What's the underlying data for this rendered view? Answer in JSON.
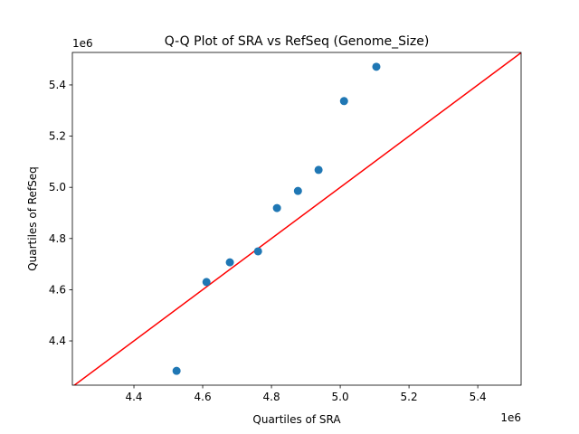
{
  "chart_data": {
    "type": "scatter",
    "title": "Q-Q Plot of SRA vs RefSeq (Genome_Size)",
    "xlabel": "Quartiles of SRA",
    "ylabel": "Quartiles of RefSeq",
    "x_offset_label": "1e6",
    "y_offset_label": "1e6",
    "xlim": [
      4.221,
      5.526
    ],
    "ylim": [
      4.227,
      5.527
    ],
    "xticks": [
      4.4,
      4.6,
      4.8,
      5.0,
      5.2,
      5.4
    ],
    "yticks": [
      4.4,
      4.6,
      4.8,
      5.0,
      5.2,
      5.4
    ],
    "xtick_labels": [
      "4.4",
      "4.6",
      "4.8",
      "5.0",
      "5.2",
      "5.4"
    ],
    "ytick_labels": [
      "4.4",
      "4.6",
      "4.8",
      "5.0",
      "5.2",
      "5.4"
    ],
    "grid": false,
    "points": {
      "x": [
        4.524,
        4.611,
        4.679,
        4.761,
        4.816,
        4.877,
        4.937,
        5.011,
        5.105
      ],
      "y": [
        4.283,
        4.63,
        4.707,
        4.75,
        4.919,
        4.986,
        5.068,
        5.337,
        5.471
      ],
      "color": "#1f77b4"
    },
    "reference_line": {
      "type": "y=x",
      "color": "#ff0000"
    }
  }
}
